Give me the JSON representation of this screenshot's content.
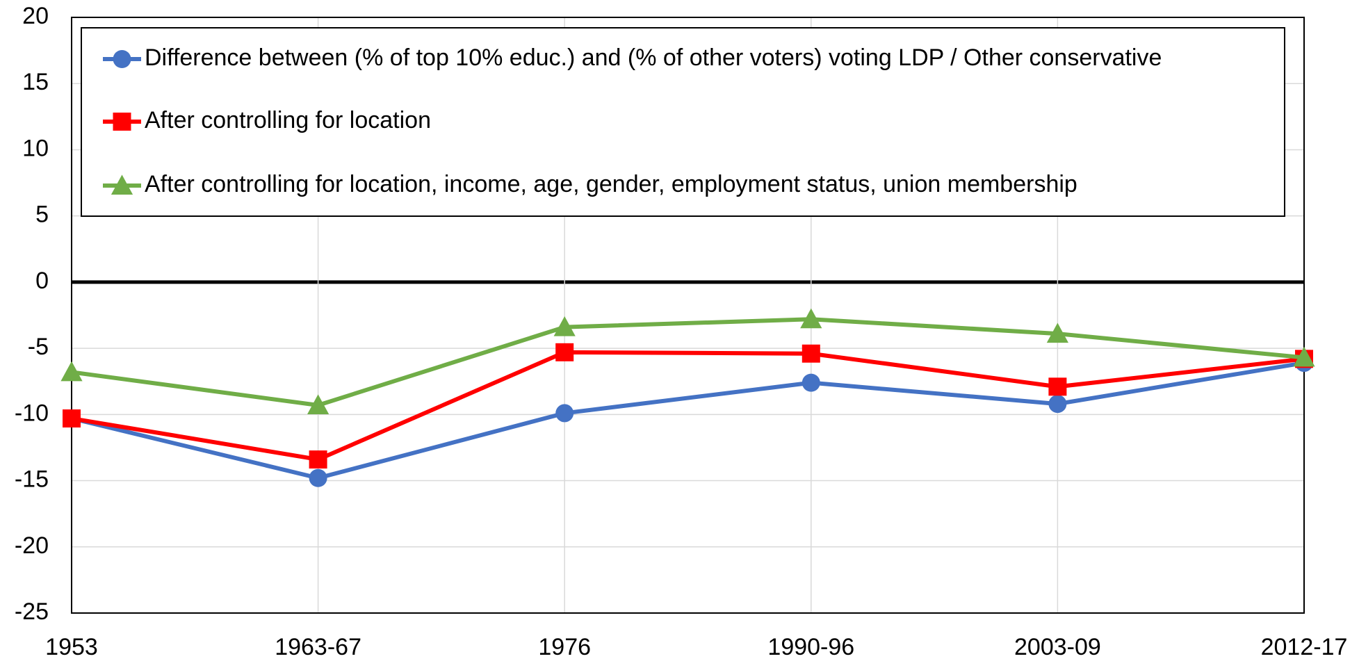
{
  "chart_data": {
    "type": "line",
    "categories": [
      "1953",
      "1963-67",
      "1976",
      "1990-96",
      "2003-09",
      "2012-17"
    ],
    "series": [
      {
        "name": "Difference between (% of top 10% educ.) and (% of other voters) voting LDP / Other conservative",
        "color": "#4472c4",
        "marker": "circle",
        "values": [
          -10.3,
          -14.8,
          -9.9,
          -7.6,
          -9.2,
          -6.1
        ]
      },
      {
        "name": "After controlling for location",
        "color": "#ff0000",
        "marker": "square",
        "values": [
          -10.3,
          -13.4,
          -5.3,
          -5.4,
          -7.9,
          -5.8
        ]
      },
      {
        "name": "After controlling for location, income, age, gender, employment status, union membership",
        "color": "#70ad47",
        "marker": "triangle",
        "values": [
          -6.8,
          -9.3,
          -3.4,
          -2.8,
          -3.9,
          -5.7
        ]
      }
    ],
    "ylim": [
      -25,
      20
    ],
    "yticks": [
      -25,
      -20,
      -15,
      -10,
      -5,
      0,
      5,
      10,
      15,
      20
    ],
    "grid": true,
    "legend": "top"
  }
}
